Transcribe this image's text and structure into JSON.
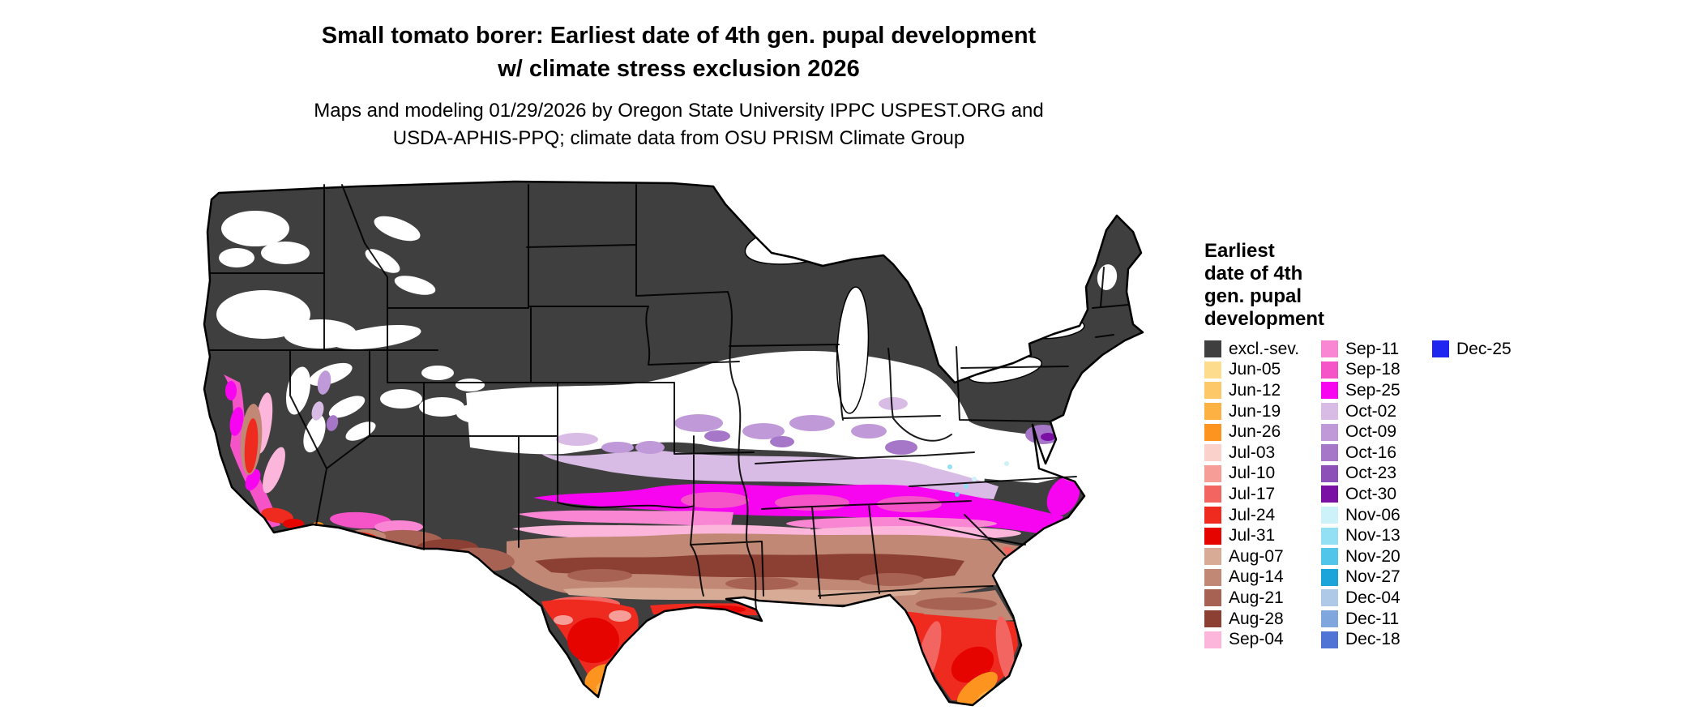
{
  "header": {
    "title_line1": "Small tomato borer: Earliest date of 4th gen. pupal development",
    "title_line2": "w/ climate stress exclusion 2026",
    "subtitle_line1": "Maps and modeling 01/29/2026 by Oregon State University IPPC USPEST.ORG and",
    "subtitle_line2": "USDA-APHIS-PPQ; climate data from OSU PRISM Climate Group"
  },
  "legend": {
    "title": "Earliest\ndate of 4th\ngen. pupal\ndevelopment",
    "columns": [
      [
        {
          "label": "excl.-sev.",
          "color": "#3f3f3f"
        },
        {
          "label": "Jun-05",
          "color": "#fddc8d"
        },
        {
          "label": "Jun-12",
          "color": "#fdc968"
        },
        {
          "label": "Jun-19",
          "color": "#fdb143"
        },
        {
          "label": "Jun-26",
          "color": "#fd9420"
        },
        {
          "label": "Jul-03",
          "color": "#fbd2cb"
        },
        {
          "label": "Jul-10",
          "color": "#f79d98"
        },
        {
          "label": "Jul-17",
          "color": "#f26560"
        },
        {
          "label": "Jul-24",
          "color": "#ef2b20"
        },
        {
          "label": "Jul-31",
          "color": "#e60400"
        },
        {
          "label": "Aug-07",
          "color": "#d8ab97"
        },
        {
          "label": "Aug-14",
          "color": "#c08875"
        },
        {
          "label": "Aug-21",
          "color": "#a86253"
        },
        {
          "label": "Aug-28",
          "color": "#8c4034"
        },
        {
          "label": "Sep-04",
          "color": "#fcb6dc"
        }
      ],
      [
        {
          "label": "Sep-11",
          "color": "#f986d2"
        },
        {
          "label": "Sep-18",
          "color": "#f554c8"
        },
        {
          "label": "Sep-25",
          "color": "#f704f0"
        },
        {
          "label": "Oct-02",
          "color": "#d9bce6"
        },
        {
          "label": "Oct-09",
          "color": "#c09ad8"
        },
        {
          "label": "Oct-16",
          "color": "#a676c8"
        },
        {
          "label": "Oct-23",
          "color": "#8c50b8"
        },
        {
          "label": "Oct-30",
          "color": "#7a10a4"
        },
        {
          "label": "Nov-06",
          "color": "#cdf2fa"
        },
        {
          "label": "Nov-13",
          "color": "#93e0f5"
        },
        {
          "label": "Nov-20",
          "color": "#52c5ea"
        },
        {
          "label": "Nov-27",
          "color": "#1aa4da"
        },
        {
          "label": "Dec-04",
          "color": "#aec8e8"
        },
        {
          "label": "Dec-11",
          "color": "#80a6de"
        },
        {
          "label": "Dec-18",
          "color": "#4f74d6"
        }
      ],
      [
        {
          "label": "Dec-25",
          "color": "#2026f0"
        }
      ]
    ]
  },
  "map": {
    "no_data_color": "#ffffff",
    "state_border_color": "#000000",
    "outline_color": "#000000"
  }
}
